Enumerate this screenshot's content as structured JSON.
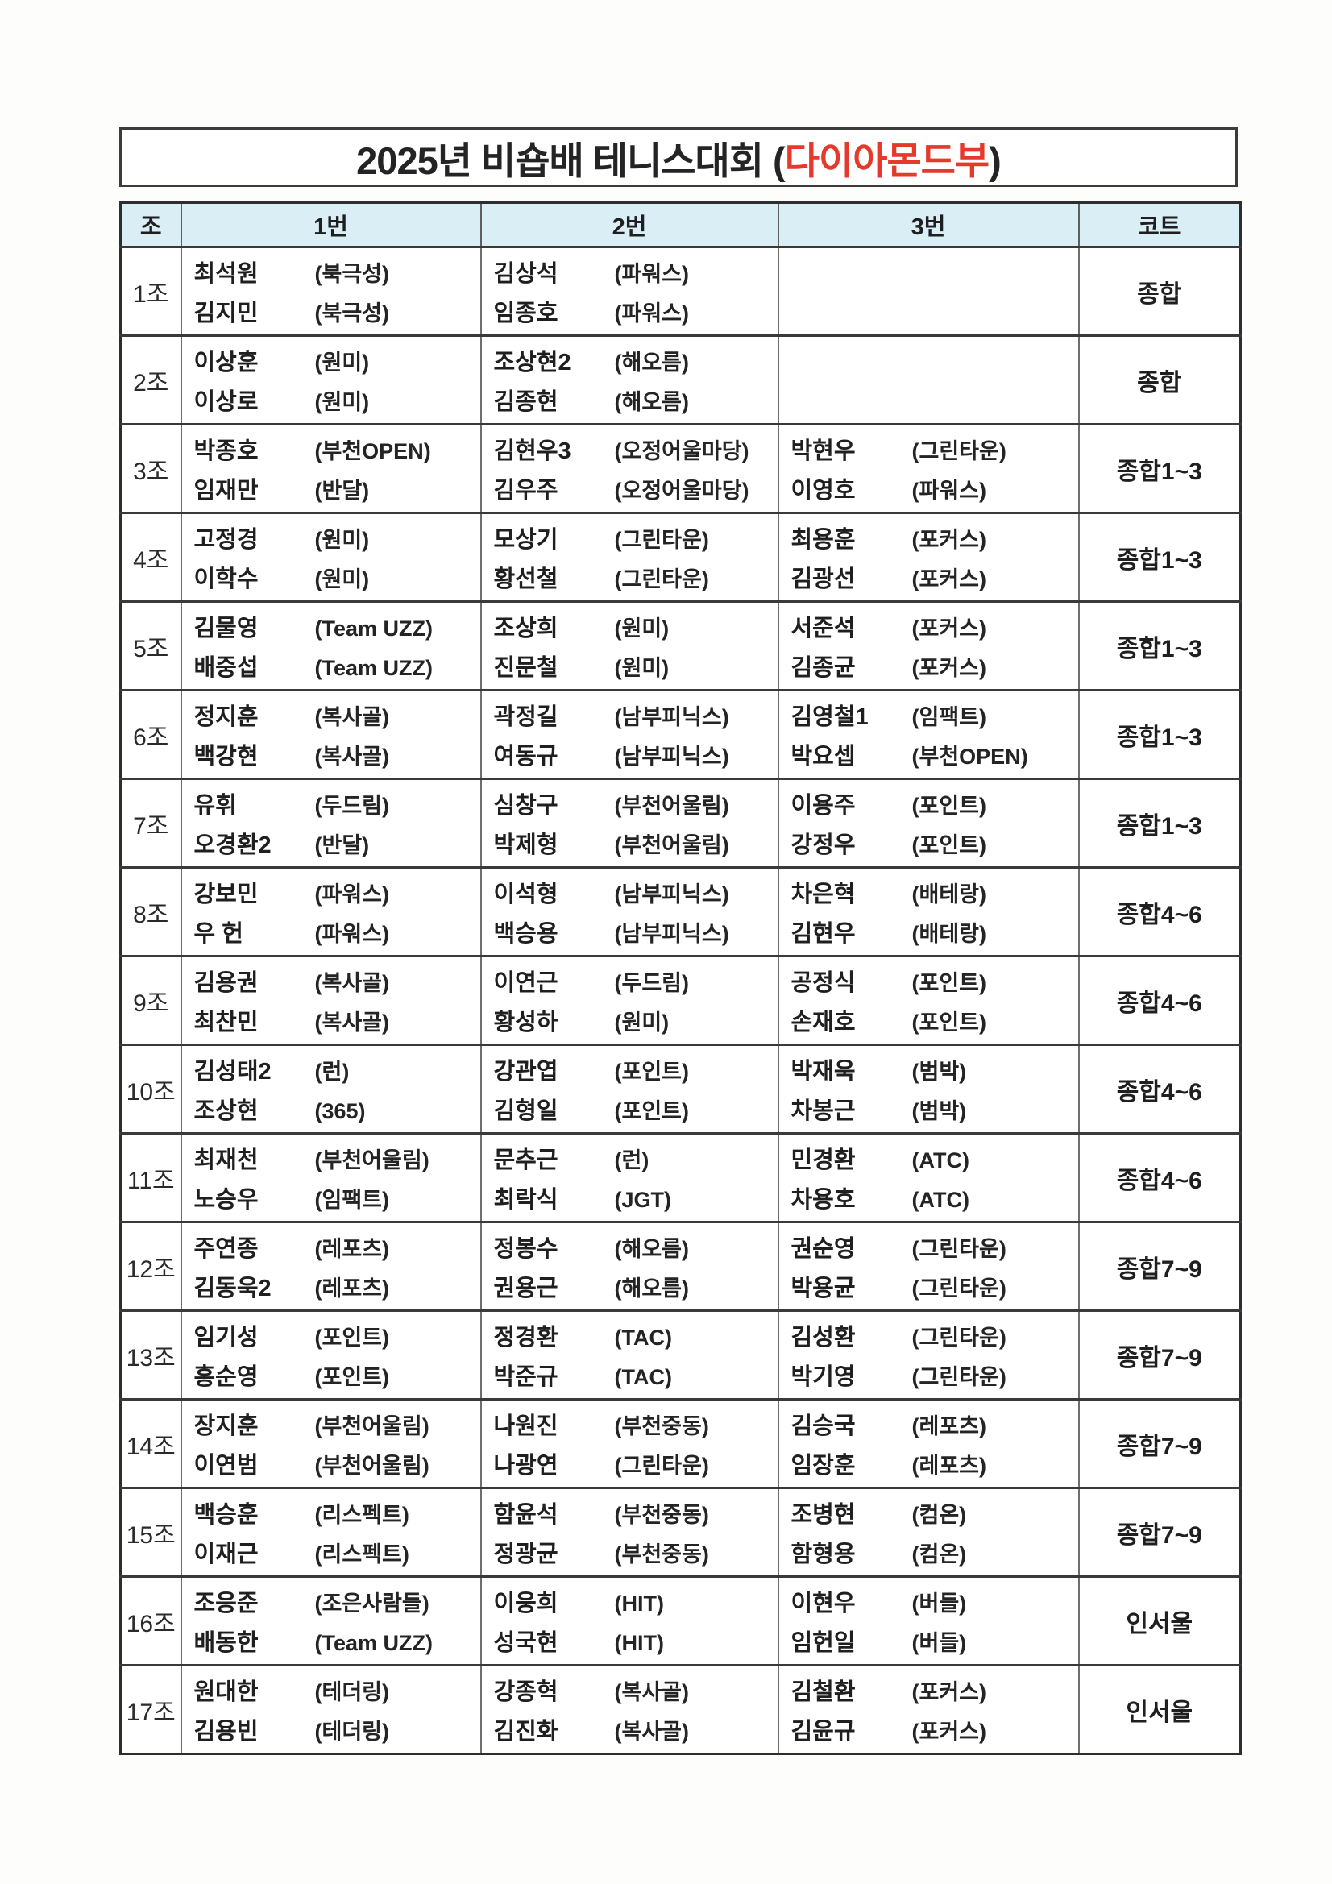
{
  "title": {
    "prefix": "2025년 비숍배 테니스대회 (",
    "accent": "다이아몬드부",
    "suffix": ")",
    "accent_color": "#e6382b"
  },
  "table": {
    "headers": [
      "조",
      "1번",
      "2번",
      "3번",
      "코트"
    ],
    "header_bg": "#daeef6",
    "rows": [
      {
        "group": "1조",
        "cells": [
          [
            {
              "name": "최석원",
              "club": "(북극성)"
            },
            {
              "name": "김지민",
              "club": "(북극성)"
            }
          ],
          [
            {
              "name": "김상석",
              "club": "(파워스)"
            },
            {
              "name": "임종호",
              "club": "(파워스)"
            }
          ],
          []
        ],
        "court": "종합"
      },
      {
        "group": "2조",
        "cells": [
          [
            {
              "name": "이상훈",
              "club": "(원미)"
            },
            {
              "name": "이상로",
              "club": "(원미)"
            }
          ],
          [
            {
              "name": "조상현2",
              "club": "(해오름)"
            },
            {
              "name": "김종현",
              "club": "(해오름)"
            }
          ],
          []
        ],
        "court": "종합"
      },
      {
        "group": "3조",
        "cells": [
          [
            {
              "name": "박종호",
              "club": "(부천OPEN)"
            },
            {
              "name": "임재만",
              "club": "(반달)"
            }
          ],
          [
            {
              "name": "김현우3",
              "club": "(오정어울마당)"
            },
            {
              "name": "김우주",
              "club": "(오정어울마당)"
            }
          ],
          [
            {
              "name": "박현우",
              "club": "(그린타운)"
            },
            {
              "name": "이영호",
              "club": "(파워스)"
            }
          ]
        ],
        "court": "종합1~3"
      },
      {
        "group": "4조",
        "cells": [
          [
            {
              "name": "고정경",
              "club": "(원미)"
            },
            {
              "name": "이학수",
              "club": "(원미)"
            }
          ],
          [
            {
              "name": "모상기",
              "club": "(그린타운)"
            },
            {
              "name": "황선철",
              "club": "(그린타운)"
            }
          ],
          [
            {
              "name": "최용훈",
              "club": "(포커스)"
            },
            {
              "name": "김광선",
              "club": "(포커스)"
            }
          ]
        ],
        "court": "종합1~3"
      },
      {
        "group": "5조",
        "cells": [
          [
            {
              "name": "김물영",
              "club": "(Team UZZ)"
            },
            {
              "name": "배중섭",
              "club": "(Team UZZ)"
            }
          ],
          [
            {
              "name": "조상희",
              "club": "(원미)"
            },
            {
              "name": "진문철",
              "club": "(원미)"
            }
          ],
          [
            {
              "name": "서준석",
              "club": "(포커스)"
            },
            {
              "name": "김종균",
              "club": "(포커스)"
            }
          ]
        ],
        "court": "종합1~3"
      },
      {
        "group": "6조",
        "cells": [
          [
            {
              "name": "정지훈",
              "club": "(복사골)"
            },
            {
              "name": "백강현",
              "club": "(복사골)"
            }
          ],
          [
            {
              "name": "곽정길",
              "club": "(남부피닉스)"
            },
            {
              "name": "여동규",
              "club": "(남부피닉스)"
            }
          ],
          [
            {
              "name": "김영철1",
              "club": "(임팩트)"
            },
            {
              "name": "박요셉",
              "club": "(부천OPEN)"
            }
          ]
        ],
        "court": "종합1~3"
      },
      {
        "group": "7조",
        "cells": [
          [
            {
              "name": "유휘",
              "club": "(두드림)"
            },
            {
              "name": "오경환2",
              "club": "(반달)"
            }
          ],
          [
            {
              "name": "심창구",
              "club": "(부천어울림)"
            },
            {
              "name": "박제형",
              "club": "(부천어울림)"
            }
          ],
          [
            {
              "name": "이용주",
              "club": "(포인트)"
            },
            {
              "name": "강정우",
              "club": "(포인트)"
            }
          ]
        ],
        "court": "종합1~3"
      },
      {
        "group": "8조",
        "cells": [
          [
            {
              "name": "강보민",
              "club": "(파워스)"
            },
            {
              "name": "우 헌",
              "club": "(파워스)"
            }
          ],
          [
            {
              "name": "이석형",
              "club": "(남부피닉스)"
            },
            {
              "name": "백승용",
              "club": "(남부피닉스)"
            }
          ],
          [
            {
              "name": "차은혁",
              "club": "(배테랑)"
            },
            {
              "name": "김현우",
              "club": "(배테랑)"
            }
          ]
        ],
        "court": "종합4~6"
      },
      {
        "group": "9조",
        "cells": [
          [
            {
              "name": "김용권",
              "club": "(복사골)"
            },
            {
              "name": "최찬민",
              "club": "(복사골)"
            }
          ],
          [
            {
              "name": "이연근",
              "club": "(두드림)"
            },
            {
              "name": "황성하",
              "club": "(원미)"
            }
          ],
          [
            {
              "name": "공정식",
              "club": "(포인트)"
            },
            {
              "name": "손재호",
              "club": "(포인트)"
            }
          ]
        ],
        "court": "종합4~6"
      },
      {
        "group": "10조",
        "cells": [
          [
            {
              "name": "김성태2",
              "club": "(런)"
            },
            {
              "name": "조상현",
              "club": "(365)"
            }
          ],
          [
            {
              "name": "강관엽",
              "club": "(포인트)"
            },
            {
              "name": "김형일",
              "club": "(포인트)"
            }
          ],
          [
            {
              "name": "박재욱",
              "club": "(범박)"
            },
            {
              "name": "차봉근",
              "club": "(범박)"
            }
          ]
        ],
        "court": "종합4~6"
      },
      {
        "group": "11조",
        "cells": [
          [
            {
              "name": "최재천",
              "club": "(부천어울림)"
            },
            {
              "name": "노승우",
              "club": "(임팩트)"
            }
          ],
          [
            {
              "name": "문추근",
              "club": "(런)"
            },
            {
              "name": "최락식",
              "club": "(JGT)"
            }
          ],
          [
            {
              "name": "민경환",
              "club": "(ATC)"
            },
            {
              "name": "차용호",
              "club": "(ATC)"
            }
          ]
        ],
        "court": "종합4~6"
      },
      {
        "group": "12조",
        "cells": [
          [
            {
              "name": "주연종",
              "club": "(레포츠)"
            },
            {
              "name": "김동욱2",
              "club": "(레포츠)"
            }
          ],
          [
            {
              "name": "정봉수",
              "club": "(해오름)"
            },
            {
              "name": "권용근",
              "club": "(해오름)"
            }
          ],
          [
            {
              "name": "권순영",
              "club": "(그린타운)"
            },
            {
              "name": "박용균",
              "club": "(그린타운)"
            }
          ]
        ],
        "court": "종합7~9"
      },
      {
        "group": "13조",
        "cells": [
          [
            {
              "name": "임기성",
              "club": "(포인트)"
            },
            {
              "name": "홍순영",
              "club": "(포인트)"
            }
          ],
          [
            {
              "name": "정경환",
              "club": "(TAC)"
            },
            {
              "name": "박준규",
              "club": "(TAC)"
            }
          ],
          [
            {
              "name": "김성환",
              "club": "(그린타운)"
            },
            {
              "name": "박기영",
              "club": "(그린타운)"
            }
          ]
        ],
        "court": "종합7~9"
      },
      {
        "group": "14조",
        "cells": [
          [
            {
              "name": "장지훈",
              "club": "(부천어울림)"
            },
            {
              "name": "이연범",
              "club": "(부천어울림)"
            }
          ],
          [
            {
              "name": "나원진",
              "club": "(부천중동)"
            },
            {
              "name": "나광연",
              "club": "(그린타운)"
            }
          ],
          [
            {
              "name": "김승국",
              "club": "(레포츠)"
            },
            {
              "name": "임장훈",
              "club": "(레포츠)"
            }
          ]
        ],
        "court": "종합7~9"
      },
      {
        "group": "15조",
        "cells": [
          [
            {
              "name": "백승훈",
              "club": "(리스펙트)"
            },
            {
              "name": "이재근",
              "club": "(리스펙트)"
            }
          ],
          [
            {
              "name": "함윤석",
              "club": "(부천중동)"
            },
            {
              "name": "정광균",
              "club": "(부천중동)"
            }
          ],
          [
            {
              "name": "조병현",
              "club": "(컴온)"
            },
            {
              "name": "함형용",
              "club": "(컴온)"
            }
          ]
        ],
        "court": "종합7~9"
      },
      {
        "group": "16조",
        "cells": [
          [
            {
              "name": "조응준",
              "club": "(조은사람들)"
            },
            {
              "name": "배동한",
              "club": "(Team UZZ)"
            }
          ],
          [
            {
              "name": "이웅희",
              "club": "(HIT)"
            },
            {
              "name": "성국현",
              "club": "(HIT)"
            }
          ],
          [
            {
              "name": "이현우",
              "club": "(버들)"
            },
            {
              "name": "임헌일",
              "club": "(버들)"
            }
          ]
        ],
        "court": "인서울"
      },
      {
        "group": "17조",
        "cells": [
          [
            {
              "name": "원대한",
              "club": "(테더링)"
            },
            {
              "name": "김용빈",
              "club": "(테더링)"
            }
          ],
          [
            {
              "name": "강종혁",
              "club": "(복사골)"
            },
            {
              "name": "김진화",
              "club": "(복사골)"
            }
          ],
          [
            {
              "name": "김철환",
              "club": "(포커스)"
            },
            {
              "name": "김윤규",
              "club": "(포커스)"
            }
          ]
        ],
        "court": "인서울"
      }
    ]
  }
}
